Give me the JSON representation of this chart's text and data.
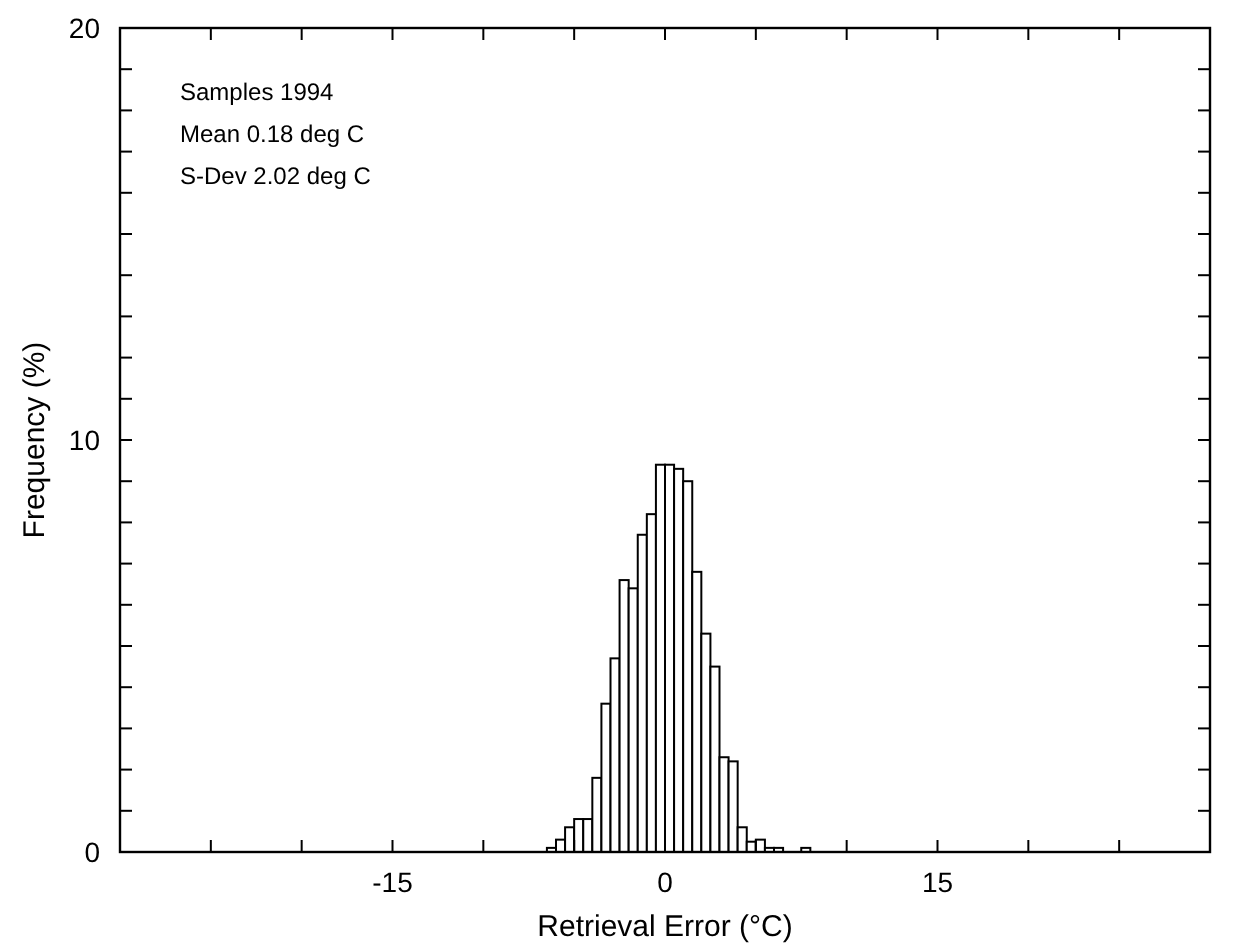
{
  "chart_data": {
    "type": "histogram",
    "xlabel": "Retrieval Error (°C)",
    "ylabel": "Frequency (%)",
    "bins": [
      -6.5,
      -6,
      -5.5,
      -5,
      -4.5,
      -4,
      -3.5,
      -3,
      -2.5,
      -2,
      -1.5,
      -1,
      -0.5,
      0,
      0.5,
      1,
      1.5,
      2,
      2.5,
      3,
      3.5,
      4,
      4.5,
      5,
      5.5,
      6,
      6.5,
      7,
      7.5,
      8
    ],
    "values": [
      0.1,
      0.3,
      0.6,
      0.8,
      0.8,
      1.8,
      3.6,
      4.7,
      6.6,
      6.4,
      7.7,
      8.2,
      9.4,
      9.4,
      9.3,
      9.0,
      6.8,
      5.3,
      4.5,
      2.3,
      2.2,
      0.6,
      0.25,
      0.3,
      0.1,
      0.1,
      0,
      0,
      0.1
    ],
    "color": "#ffffff",
    "xlim": [
      -30,
      30
    ],
    "xticks": [
      {
        "value": -25,
        "label": null
      },
      {
        "value": -20,
        "label": null
      },
      -15,
      {
        "value": -10,
        "label": null
      },
      {
        "value": -5,
        "label": null
      },
      0,
      {
        "value": 5,
        "label": null
      },
      {
        "value": 10,
        "label": null
      },
      15,
      {
        "value": 20,
        "label": null
      },
      {
        "value": 25,
        "label": null
      }
    ],
    "ylim": [
      0,
      20
    ],
    "yticks": [
      0,
      {
        "value": 1,
        "label": null
      },
      {
        "value": 2,
        "label": null
      },
      {
        "value": 3,
        "label": null
      },
      {
        "value": 4,
        "label": null
      },
      {
        "value": 5,
        "label": null
      },
      {
        "value": 6,
        "label": null
      },
      {
        "value": 7,
        "label": null
      },
      {
        "value": 8,
        "label": null
      },
      {
        "value": 9,
        "label": null
      },
      10,
      {
        "value": 11,
        "label": null
      },
      {
        "value": 12,
        "label": null
      },
      {
        "value": 13,
        "label": null
      },
      {
        "value": 14,
        "label": null
      },
      {
        "value": 15,
        "label": null
      },
      {
        "value": 16,
        "label": null
      },
      {
        "value": 17,
        "label": null
      },
      {
        "value": 18,
        "label": null
      },
      {
        "value": 19,
        "label": null
      },
      20
    ],
    "annotations": [
      "Samples 1994",
      "Mean 0.18 deg C",
      "S-Dev 2.02 deg C"
    ],
    "grid": false
  }
}
